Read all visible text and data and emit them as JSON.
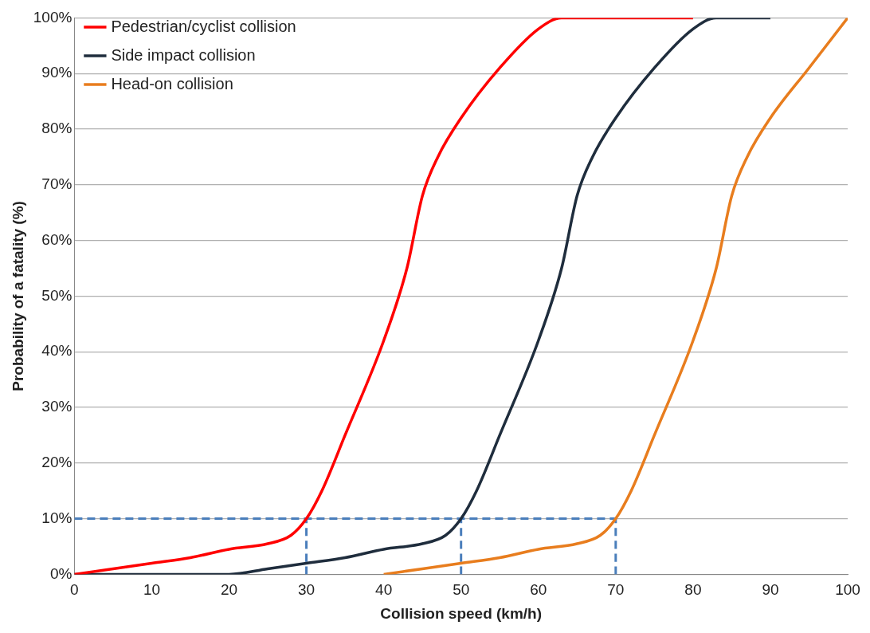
{
  "chart_data": {
    "type": "line",
    "xlabel": "Collision speed (km/h)",
    "ylabel": "Probability of a fatality (%)",
    "xlim": [
      0,
      100
    ],
    "xticks": [
      0,
      10,
      20,
      30,
      40,
      50,
      60,
      70,
      80,
      90,
      100
    ],
    "ylim": [
      0,
      100
    ],
    "yticks": [
      {
        "value": 0,
        "label": "0%"
      },
      {
        "value": 10,
        "label": "10%"
      },
      {
        "value": 20,
        "label": "20%"
      },
      {
        "value": 30,
        "label": "30%"
      },
      {
        "value": 40,
        "label": "40%"
      },
      {
        "value": 50,
        "label": "50%"
      },
      {
        "value": 60,
        "label": "60%"
      },
      {
        "value": 70,
        "label": "70%"
      },
      {
        "value": 80,
        "label": "80%"
      },
      {
        "value": 90,
        "label": "90%"
      },
      {
        "value": 100,
        "label": "100%"
      }
    ],
    "grid": "y",
    "legend": "top left",
    "marker": "none",
    "line_style": "solid",
    "series": [
      {
        "name": "Pedestrian/cyclist collision",
        "color": "#ff0000",
        "x": [
          0,
          5,
          10,
          15,
          20,
          25,
          28,
          30,
          32,
          35,
          40,
          43,
          45,
          47,
          50,
          55,
          60,
          63,
          65,
          70,
          75,
          80
        ],
        "values": [
          0,
          1,
          2,
          3,
          4.5,
          5.5,
          7,
          10,
          15,
          25,
          42,
          55,
          68,
          75,
          82,
          91,
          98,
          100,
          100,
          100,
          100,
          100
        ]
      },
      {
        "name": "Side impact collision",
        "color": "#1f2d3d",
        "x": [
          0,
          10,
          20,
          25,
          30,
          35,
          40,
          45,
          48,
          50,
          52,
          55,
          60,
          63,
          65,
          67,
          70,
          75,
          80,
          83,
          85,
          90
        ],
        "values": [
          0,
          0,
          0,
          1,
          2,
          3,
          4.5,
          5.5,
          7,
          10,
          15,
          25,
          42,
          55,
          68,
          75,
          82,
          91,
          98,
          100,
          100,
          100
        ]
      },
      {
        "name": "Head-on collision",
        "color": "#e87d1e",
        "x": [
          40,
          45,
          50,
          55,
          60,
          65,
          68,
          70,
          72,
          75,
          80,
          83,
          85,
          87,
          90,
          95,
          100
        ],
        "values": [
          0,
          1,
          2,
          3,
          4.5,
          5.5,
          7,
          10,
          15,
          25,
          42,
          55,
          68,
          75,
          82,
          91,
          100
        ]
      },
      {
        "color": "#4a7ebb",
        "line_style": "dashed",
        "x": [
          0,
          70
        ],
        "values": [
          10,
          10
        ]
      },
      {
        "color": "#4a7ebb",
        "line_style": "dashed",
        "x": [
          30,
          30
        ],
        "values": [
          0,
          10
        ]
      },
      {
        "color": "#4a7ebb",
        "line_style": "dashed",
        "x": [
          50,
          50
        ],
        "values": [
          0,
          10
        ]
      },
      {
        "color": "#4a7ebb",
        "line_style": "dashed",
        "x": [
          70,
          70
        ],
        "values": [
          0,
          10
        ]
      }
    ]
  }
}
